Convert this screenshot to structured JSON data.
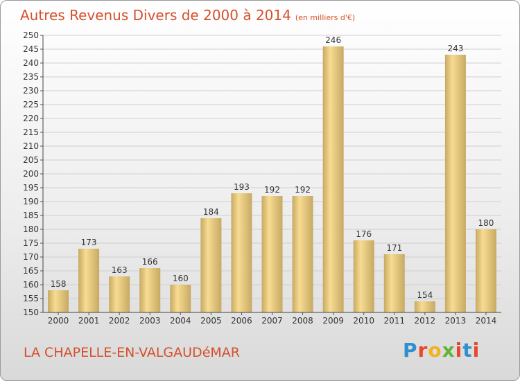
{
  "header": {
    "title": "Autres Revenus Divers de 2000 à 2014",
    "subtitle": "(en milliers d'€)"
  },
  "footer": {
    "commune": "LA CHAPELLE-EN-VALGAUDéMAR",
    "logo": "Proxiti"
  },
  "colors": {
    "title": "#d4502c",
    "bar_light": "#f7dc92",
    "bar_dark": "#c7a963",
    "grid": "#cfcfcf"
  },
  "chart_data": {
    "type": "bar",
    "title": "Autres Revenus Divers de 2000 à 2014",
    "subtitle": "(en milliers d'€)",
    "categories": [
      "2000",
      "2001",
      "2002",
      "2003",
      "2004",
      "2005",
      "2006",
      "2007",
      "2008",
      "2009",
      "2010",
      "2011",
      "2012",
      "2013",
      "2014"
    ],
    "values": [
      158,
      173,
      163,
      166,
      160,
      184,
      193,
      192,
      192,
      246,
      176,
      171,
      154,
      243,
      180
    ],
    "ylim": [
      150,
      250
    ],
    "ytick_step": 5,
    "grid": true,
    "data_labels": true
  }
}
